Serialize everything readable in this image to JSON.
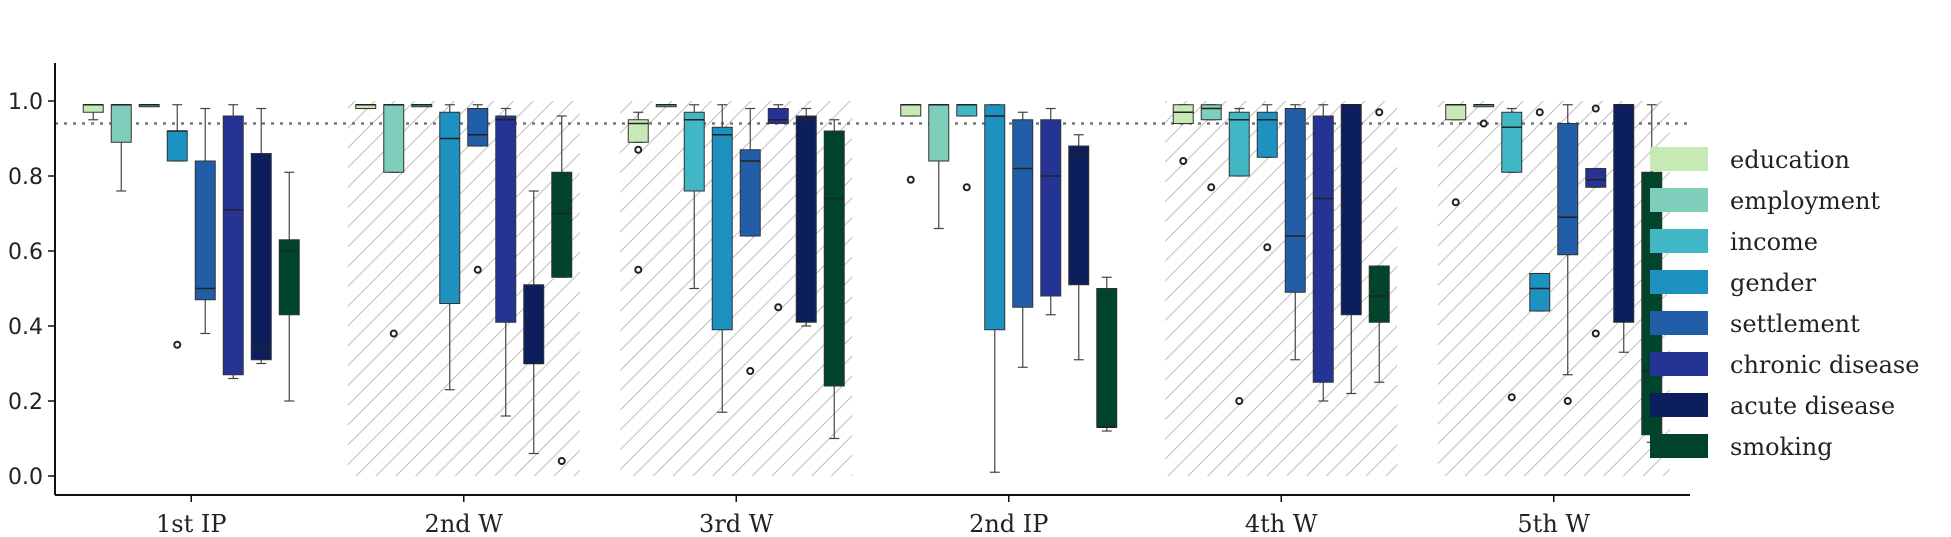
{
  "chart_data": {
    "type": "box",
    "categories": [
      "1st IP",
      "2nd W",
      "3rd W",
      "2nd IP",
      "4th W",
      "5th W"
    ],
    "hatched_categories": [
      "2nd W",
      "3rd W",
      "4th W",
      "5th W"
    ],
    "ylim": [
      0,
      1.05
    ],
    "yticks": [
      "0.0",
      "0.2",
      "0.4",
      "0.6",
      "0.8",
      "1.0"
    ],
    "reference_line": 0.94,
    "legend_placement": "right",
    "series": [
      {
        "name": "education",
        "color": "#c7e9b4",
        "boxes": [
          {
            "q1": 0.97,
            "median": 0.99,
            "q3": 0.99,
            "wlo": 0.95,
            "whi": 0.99,
            "outliers": []
          },
          {
            "q1": 0.98,
            "median": 0.99,
            "q3": 0.99,
            "wlo": 0.98,
            "whi": 0.99,
            "outliers": []
          },
          {
            "q1": 0.89,
            "median": 0.94,
            "q3": 0.95,
            "wlo": 0.89,
            "whi": 0.97,
            "outliers": [
              0.87,
              0.55
            ]
          },
          {
            "q1": 0.96,
            "median": 0.99,
            "q3": 0.99,
            "wlo": 0.96,
            "whi": 0.99,
            "outliers": [
              0.79
            ]
          },
          {
            "q1": 0.94,
            "median": 0.97,
            "q3": 0.99,
            "wlo": 0.94,
            "whi": 0.99,
            "outliers": [
              0.84
            ]
          },
          {
            "q1": 0.95,
            "median": 0.99,
            "q3": 0.99,
            "wlo": 0.95,
            "whi": 0.99,
            "outliers": [
              0.73
            ]
          }
        ]
      },
      {
        "name": "employment",
        "color": "#7fcdbb",
        "boxes": [
          {
            "q1": 0.89,
            "median": 0.99,
            "q3": 0.99,
            "wlo": 0.76,
            "whi": 0.99,
            "outliers": []
          },
          {
            "q1": 0.81,
            "median": 0.99,
            "q3": 0.99,
            "wlo": 0.81,
            "whi": 0.99,
            "outliers": [
              0.38
            ]
          },
          {
            "q1": 0.99,
            "median": 0.99,
            "q3": 0.99,
            "wlo": 0.99,
            "whi": 0.99,
            "outliers": []
          },
          {
            "q1": 0.84,
            "median": 0.99,
            "q3": 0.99,
            "wlo": 0.66,
            "whi": 0.99,
            "outliers": []
          },
          {
            "q1": 0.95,
            "median": 0.98,
            "q3": 0.99,
            "wlo": 0.95,
            "whi": 0.99,
            "outliers": [
              0.77
            ]
          },
          {
            "q1": 0.99,
            "median": 0.99,
            "q3": 0.99,
            "wlo": 0.99,
            "whi": 0.99,
            "outliers": [
              0.94
            ]
          }
        ]
      },
      {
        "name": "income",
        "color": "#41b6c4",
        "boxes": [
          {
            "q1": 0.99,
            "median": 0.99,
            "q3": 0.99,
            "wlo": 0.99,
            "whi": 0.99,
            "outliers": []
          },
          {
            "q1": 0.99,
            "median": 0.99,
            "q3": 0.99,
            "wlo": 0.99,
            "whi": 0.99,
            "outliers": []
          },
          {
            "q1": 0.76,
            "median": 0.95,
            "q3": 0.97,
            "wlo": 0.5,
            "whi": 0.99,
            "outliers": []
          },
          {
            "q1": 0.96,
            "median": 0.99,
            "q3": 0.99,
            "wlo": 0.96,
            "whi": 0.99,
            "outliers": [
              0.77
            ]
          },
          {
            "q1": 0.8,
            "median": 0.95,
            "q3": 0.97,
            "wlo": 0.8,
            "whi": 0.98,
            "outliers": [
              0.2
            ]
          },
          {
            "q1": 0.81,
            "median": 0.93,
            "q3": 0.97,
            "wlo": 0.81,
            "whi": 0.98,
            "outliers": [
              0.21
            ]
          }
        ]
      },
      {
        "name": "gender",
        "color": "#1d91c0",
        "boxes": [
          {
            "q1": 0.84,
            "median": 0.92,
            "q3": 0.92,
            "wlo": 0.84,
            "whi": 0.99,
            "outliers": [
              0.35
            ]
          },
          {
            "q1": 0.46,
            "median": 0.9,
            "q3": 0.97,
            "wlo": 0.23,
            "whi": 0.99,
            "outliers": []
          },
          {
            "q1": 0.39,
            "median": 0.91,
            "q3": 0.93,
            "wlo": 0.17,
            "whi": 0.99,
            "outliers": []
          },
          {
            "q1": 0.39,
            "median": 0.96,
            "q3": 0.99,
            "wlo": 0.01,
            "whi": 0.99,
            "outliers": []
          },
          {
            "q1": 0.85,
            "median": 0.95,
            "q3": 0.97,
            "wlo": 0.85,
            "whi": 0.99,
            "outliers": [
              0.61
            ]
          },
          {
            "q1": 0.44,
            "median": 0.5,
            "q3": 0.54,
            "wlo": 0.44,
            "whi": 0.54,
            "outliers": [
              0.97
            ]
          }
        ]
      },
      {
        "name": "settlement",
        "color": "#225ea8",
        "boxes": [
          {
            "q1": 0.47,
            "median": 0.5,
            "q3": 0.84,
            "wlo": 0.38,
            "whi": 0.98,
            "outliers": []
          },
          {
            "q1": 0.88,
            "median": 0.91,
            "q3": 0.98,
            "wlo": 0.88,
            "whi": 0.99,
            "outliers": [
              0.55
            ]
          },
          {
            "q1": 0.64,
            "median": 0.84,
            "q3": 0.87,
            "wlo": 0.64,
            "whi": 0.98,
            "outliers": [
              0.28
            ]
          },
          {
            "q1": 0.45,
            "median": 0.82,
            "q3": 0.95,
            "wlo": 0.29,
            "whi": 0.97,
            "outliers": []
          },
          {
            "q1": 0.49,
            "median": 0.64,
            "q3": 0.98,
            "wlo": 0.31,
            "whi": 0.99,
            "outliers": []
          },
          {
            "q1": 0.59,
            "median": 0.69,
            "q3": 0.94,
            "wlo": 0.27,
            "whi": 0.99,
            "outliers": [
              0.2
            ]
          }
        ]
      },
      {
        "name": "chronic disease",
        "color": "#253494",
        "boxes": [
          {
            "q1": 0.27,
            "median": 0.71,
            "q3": 0.96,
            "wlo": 0.26,
            "whi": 0.99,
            "outliers": []
          },
          {
            "q1": 0.41,
            "median": 0.95,
            "q3": 0.96,
            "wlo": 0.16,
            "whi": 0.98,
            "outliers": []
          },
          {
            "q1": 0.94,
            "median": 0.95,
            "q3": 0.98,
            "wlo": 0.94,
            "whi": 0.99,
            "outliers": [
              0.45
            ]
          },
          {
            "q1": 0.48,
            "median": 0.8,
            "q3": 0.95,
            "wlo": 0.43,
            "whi": 0.98,
            "outliers": []
          },
          {
            "q1": 0.25,
            "median": 0.74,
            "q3": 0.96,
            "wlo": 0.2,
            "whi": 0.99,
            "outliers": []
          },
          {
            "q1": 0.77,
            "median": 0.79,
            "q3": 0.82,
            "wlo": 0.77,
            "whi": 0.82,
            "outliers": [
              0.38,
              0.98
            ]
          }
        ]
      },
      {
        "name": "acute disease",
        "color": "#0c1f5c",
        "boxes": [
          {
            "q1": 0.31,
            "median": 0.34,
            "q3": 0.86,
            "wlo": 0.3,
            "whi": 0.98,
            "outliers": []
          },
          {
            "q1": 0.3,
            "median": 0.3,
            "q3": 0.51,
            "wlo": 0.06,
            "whi": 0.76,
            "outliers": []
          },
          {
            "q1": 0.41,
            "median": 0.95,
            "q3": 0.96,
            "wlo": 0.4,
            "whi": 0.98,
            "outliers": []
          },
          {
            "q1": 0.51,
            "median": 0.86,
            "q3": 0.88,
            "wlo": 0.31,
            "whi": 0.91,
            "outliers": []
          },
          {
            "q1": 0.43,
            "median": 0.99,
            "q3": 0.99,
            "wlo": 0.22,
            "whi": 0.99,
            "outliers": []
          },
          {
            "q1": 0.41,
            "median": 0.99,
            "q3": 0.99,
            "wlo": 0.33,
            "whi": 0.99,
            "outliers": []
          }
        ]
      },
      {
        "name": "smoking",
        "color": "#00442b",
        "boxes": [
          {
            "q1": 0.43,
            "median": 0.6,
            "q3": 0.63,
            "wlo": 0.2,
            "whi": 0.81,
            "outliers": []
          },
          {
            "q1": 0.53,
            "median": 0.7,
            "q3": 0.81,
            "wlo": 0.53,
            "whi": 0.96,
            "outliers": [
              0.04
            ]
          },
          {
            "q1": 0.24,
            "median": 0.74,
            "q3": 0.92,
            "wlo": 0.1,
            "whi": 0.95,
            "outliers": []
          },
          {
            "q1": 0.13,
            "median": 0.13,
            "q3": 0.5,
            "wlo": 0.12,
            "whi": 0.53,
            "outliers": []
          },
          {
            "q1": 0.41,
            "median": 0.48,
            "q3": 0.56,
            "wlo": 0.25,
            "whi": 0.56,
            "outliers": [
              0.97
            ]
          },
          {
            "q1": 0.11,
            "median": 0.28,
            "q3": 0.81,
            "wlo": 0.09,
            "whi": 0.99,
            "outliers": []
          }
        ]
      }
    ]
  }
}
